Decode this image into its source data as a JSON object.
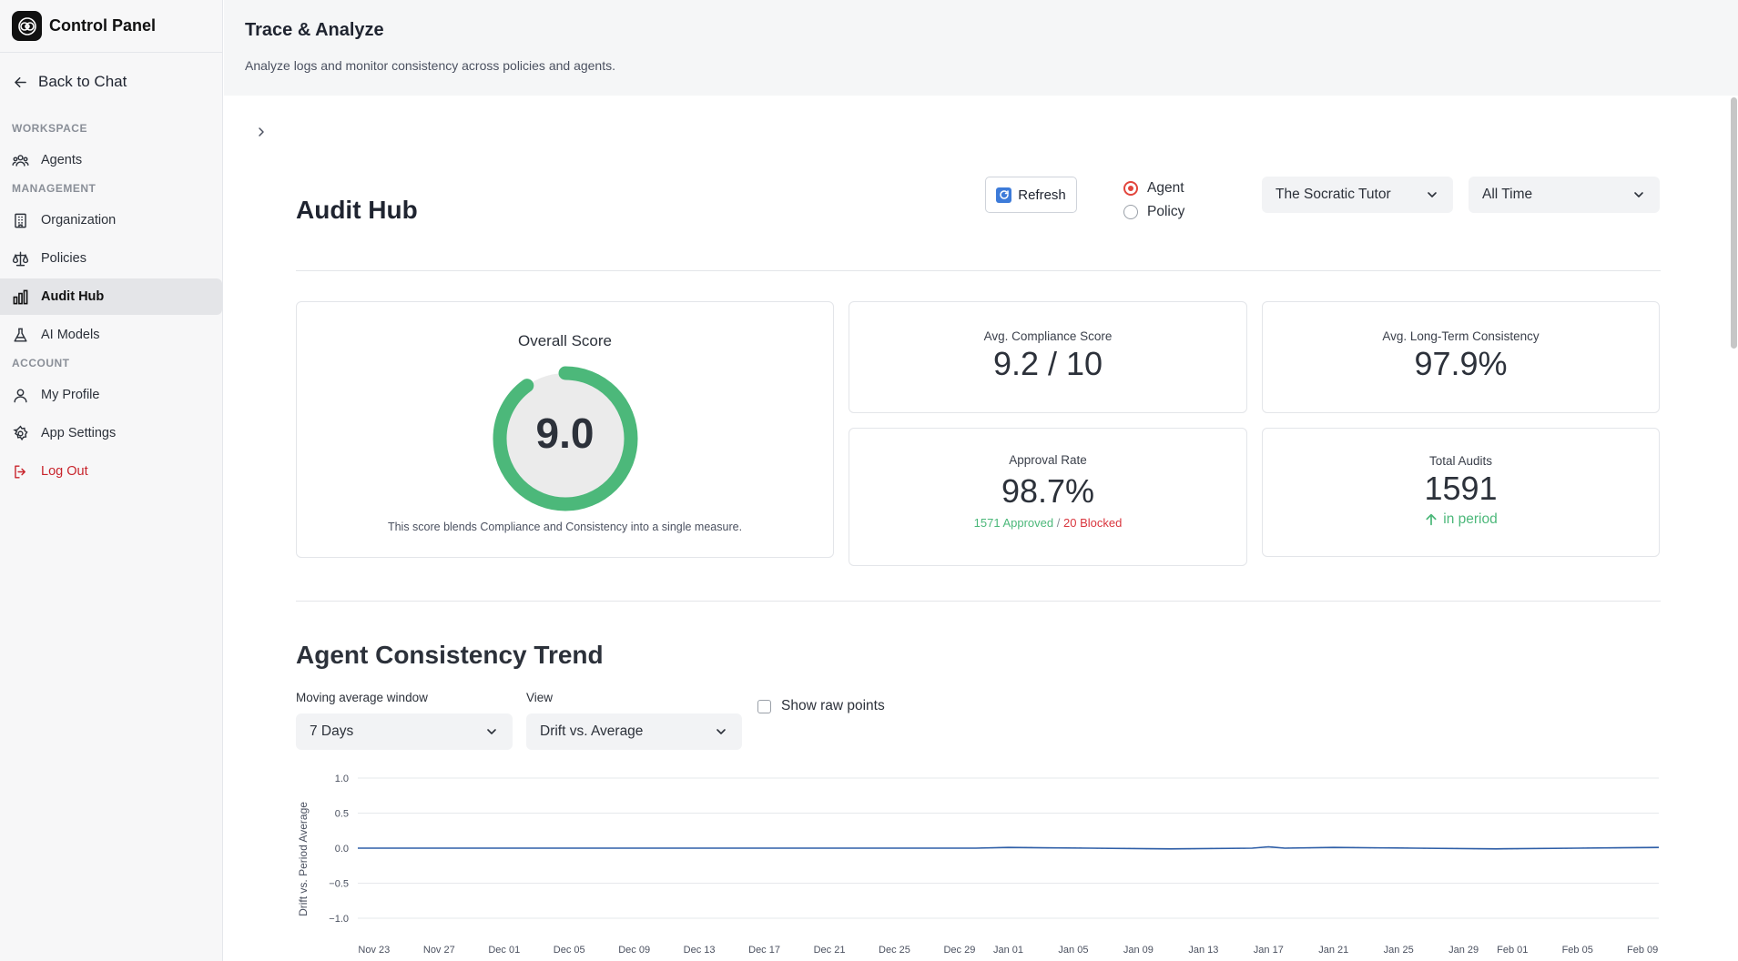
{
  "sidebar": {
    "brand": "Control Panel",
    "back": "Back to Chat",
    "sections": {
      "workspace": "WORKSPACE",
      "management": "MANAGEMENT",
      "account": "ACCOUNT"
    },
    "items": {
      "agents": "Agents",
      "organization": "Organization",
      "policies": "Policies",
      "audit_hub": "Audit Hub",
      "ai_models": "AI Models",
      "my_profile": "My Profile",
      "app_settings": "App Settings",
      "log_out": "Log Out"
    }
  },
  "header": {
    "title": "Trace & Analyze",
    "subtitle": "Analyze logs and monitor consistency across policies and agents."
  },
  "audit": {
    "title": "Audit Hub",
    "refresh": "Refresh",
    "mode_options": [
      "Agent",
      "Policy"
    ],
    "mode_selected": "Agent",
    "agent_select": "The Socratic Tutor",
    "period_select": "All Time"
  },
  "cards": {
    "overall": {
      "label": "Overall Score",
      "value": "9.0",
      "value_fraction": 0.9,
      "note": "This score blends Compliance and Consistency into a single measure."
    },
    "compliance": {
      "label": "Avg. Compliance Score",
      "value": "9.2 / 10"
    },
    "consistency": {
      "label": "Avg. Long-Term Consistency",
      "value": "97.9%"
    },
    "approval": {
      "label": "Approval Rate",
      "value": "98.7%",
      "approved": "1571 Approved",
      "sep": "/",
      "blocked": "20 Blocked"
    },
    "total": {
      "label": "Total Audits",
      "value": "1591",
      "sub": "in period"
    }
  },
  "colors": {
    "accent_green": "#4cb87a",
    "danger": "#d9363e",
    "line_blue": "#2f5fa8"
  },
  "trend": {
    "title": "Agent Consistency Trend",
    "window_label": "Moving average window",
    "window_value": "7 Days",
    "view_label": "View",
    "view_value": "Drift vs. Average",
    "raw_points_label": "Show raw points"
  },
  "chart_data": {
    "type": "line",
    "title": "",
    "xlabel": "",
    "ylabel": "Drift vs. Period Average",
    "ylim": [
      -1.0,
      1.0
    ],
    "yticks": [
      "1.0",
      "0.5",
      "0.0",
      "−0.5",
      "−1.0"
    ],
    "ytick_values": [
      1.0,
      0.5,
      0.0,
      -0.5,
      -1.0
    ],
    "xticks": [
      "Nov 23",
      "Nov 27",
      "Dec 01",
      "Dec 05",
      "Dec 09",
      "Dec 13",
      "Dec 17",
      "Dec 21",
      "Dec 25",
      "Dec 29",
      "Jan 01",
      "Jan 05",
      "Jan 09",
      "Jan 13",
      "Jan 17",
      "Jan 21",
      "Jan 25",
      "Jan 29",
      "Feb 01",
      "Feb 05",
      "Feb 09"
    ],
    "xtick_days": [
      -9,
      -5,
      -1,
      3,
      7,
      11,
      15,
      19,
      23,
      27,
      30,
      34,
      38,
      42,
      46,
      50,
      54,
      58,
      61,
      65,
      69
    ],
    "xlim_days": [
      -10,
      70
    ],
    "grid": true,
    "series": [
      {
        "name": "Drift",
        "x_days": [
          -10,
          0,
          10,
          20,
          28,
          30,
          35,
          40,
          45,
          46,
          47,
          50,
          55,
          60,
          65,
          70
        ],
        "values": [
          0.0,
          0.0,
          0.0,
          0.0,
          0.0,
          0.01,
          0.0,
          -0.01,
          0.0,
          0.02,
          0.0,
          0.01,
          0.0,
          -0.01,
          0.0,
          0.01
        ]
      }
    ]
  }
}
